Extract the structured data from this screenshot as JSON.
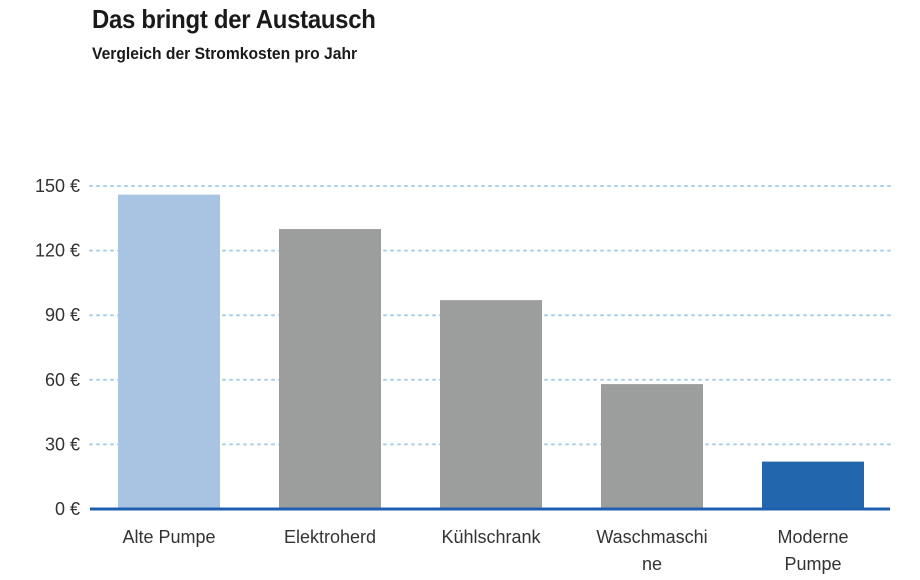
{
  "title": "Das bringt der Austausch",
  "subtitle": "Vergleich der Stromkosten pro Jahr",
  "chart_data": {
    "type": "bar",
    "categories": [
      [
        "Alte Pumpe"
      ],
      [
        "Elektroherd"
      ],
      [
        "Kühlschrank"
      ],
      [
        "Waschmaschi",
        "ne"
      ],
      [
        "Moderne",
        "Pumpe"
      ]
    ],
    "values": [
      146,
      130,
      97,
      58,
      22
    ],
    "colors": [
      "#a9c3e3",
      "#9c9e9e",
      "#9c9e9e",
      "#9c9e9e",
      "#2266ae"
    ],
    "yticks": [
      0,
      30,
      60,
      90,
      120,
      150
    ],
    "tick_suffix": " €",
    "ylim": [
      0,
      150
    ],
    "grid": true,
    "grid_color": "#a8d0e6",
    "axis_color": "#1f5fae"
  }
}
